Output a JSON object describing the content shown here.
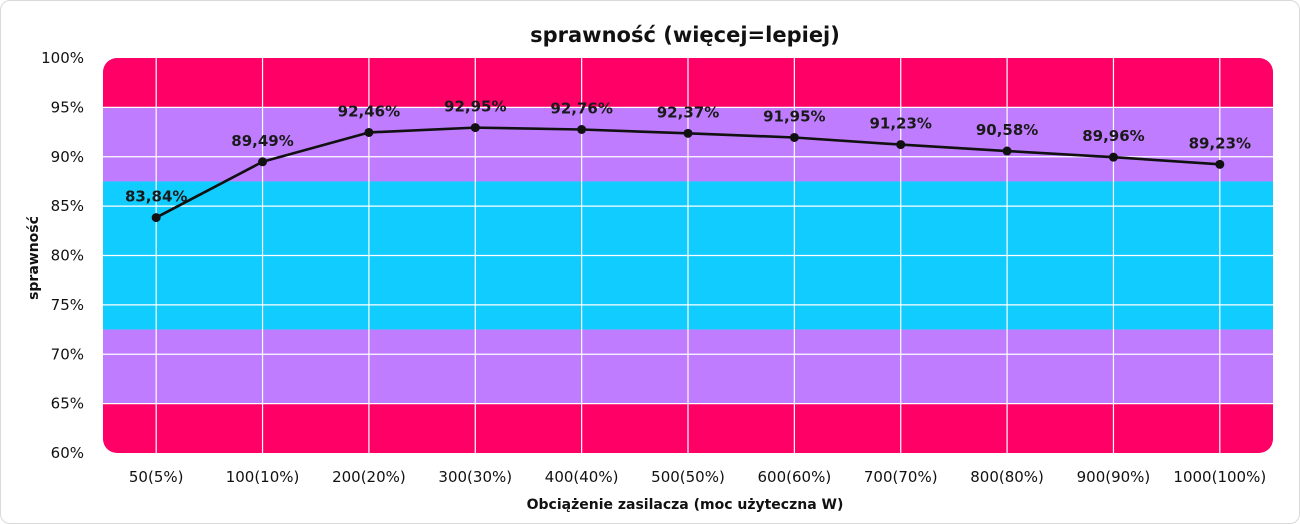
{
  "chart_data": {
    "type": "line",
    "title": "sprawność (więcej=lepiej)",
    "xlabel": "Obciążenie zasilacza (moc użyteczna W)",
    "ylabel": "sprawność",
    "categories": [
      "50(5%)",
      "100(10%)",
      "200(20%)",
      "300(30%)",
      "400(40%)",
      "500(50%)",
      "600(60%)",
      "700(70%)",
      "800(80%)",
      "900(90%)",
      "1000(100%)"
    ],
    "series": [
      {
        "values": [
          83.84,
          89.49,
          92.46,
          92.95,
          92.76,
          92.37,
          91.95,
          91.23,
          90.58,
          89.96,
          89.23
        ],
        "labels": [
          "83,84%",
          "89,49%",
          "92,46%",
          "92,95%",
          "92,76%",
          "92,37%",
          "91,95%",
          "91,23%",
          "90,58%",
          "89,96%",
          "89,23%"
        ],
        "color": "#111111"
      }
    ],
    "ylim": [
      60,
      100
    ],
    "yticks": [
      60,
      65,
      70,
      75,
      80,
      85,
      90,
      95,
      100
    ],
    "ytick_labels": [
      "60%",
      "65%",
      "70%",
      "75%",
      "80%",
      "85%",
      "90%",
      "95%",
      "100%"
    ],
    "grid": true,
    "background_bands": [
      {
        "from": 95,
        "to": 100,
        "color": "#ff0066"
      },
      {
        "from": 87.5,
        "to": 95,
        "color": "#c07cff"
      },
      {
        "from": 72.5,
        "to": 87.5,
        "color": "#11ccff"
      },
      {
        "from": 65,
        "to": 72.5,
        "color": "#c07cff"
      },
      {
        "from": 60,
        "to": 65,
        "color": "#ff0066"
      }
    ]
  }
}
